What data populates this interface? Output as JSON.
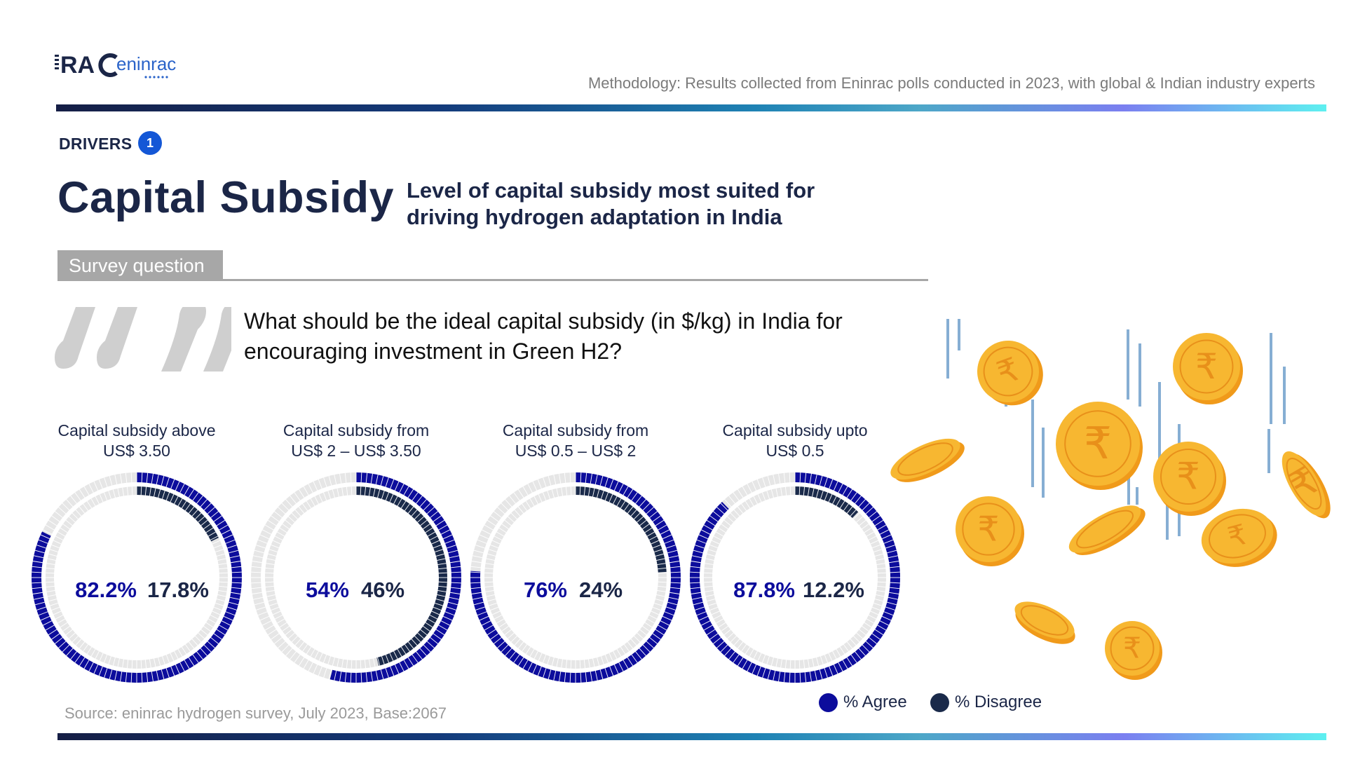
{
  "header": {
    "logo_text": "RAC eninrac",
    "methodology": "Methodology: Results collected from Eninrac polls conducted in 2023, with global & Indian industry experts"
  },
  "section": {
    "label": "DRIVERS",
    "number": "1"
  },
  "title": "Capital Subsidy",
  "subtitle": "Level of capital subsidy most suited for driving hydrogen adaptation in India",
  "survey_tab": "Survey question",
  "question": "What should be the ideal capital subsidy (in $/kg) in India for encouraging investment in Green H2?",
  "chart_data": {
    "type": "donut",
    "series_names": [
      "% Agree",
      "% Disagree"
    ],
    "items": [
      {
        "label_line1": "Capital subsidy above",
        "label_line2": "US$ 3.50",
        "agree": 82.2,
        "disagree": 17.8,
        "agree_label": "82.2%",
        "disagree_label": "17.8%"
      },
      {
        "label_line1": "Capital subsidy from",
        "label_line2": "US$ 2 – US$ 3.50",
        "agree": 54,
        "disagree": 46,
        "agree_label": "54%",
        "disagree_label": "46%"
      },
      {
        "label_line1": "Capital subsidy from",
        "label_line2": "US$ 0.5 – US$ 2",
        "agree": 76,
        "disagree": 24,
        "agree_label": "76%",
        "disagree_label": "24%"
      },
      {
        "label_line1": "Capital subsidy upto",
        "label_line2": "US$ 0.5",
        "agree": 87.8,
        "disagree": 12.2,
        "agree_label": "87.8%",
        "disagree_label": "12.2%"
      }
    ]
  },
  "legend": {
    "agree": "% Agree",
    "disagree": "% Disagree"
  },
  "source": "Source: eninrac hydrogen survey, July 2023, Base:2067",
  "colors": {
    "navy": "#1b2647",
    "agree": "#0c0c9c",
    "disagree": "#1a2a4a",
    "track": "#e6e6e6",
    "grey": "#a7a7a7",
    "coin": "#f7b731",
    "coin_dark": "#f09a1a"
  }
}
